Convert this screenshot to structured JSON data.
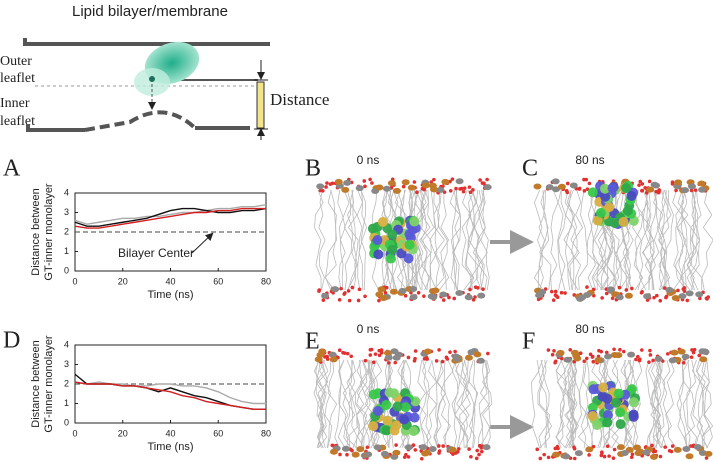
{
  "diagram": {
    "title": "Lipid bilayer/membrane",
    "outer_label": [
      "Outer",
      "leaflet"
    ],
    "inner_label": [
      "Inner",
      "leaflet"
    ],
    "distance_label": "Distance"
  },
  "panels": [
    {
      "letter": "A"
    },
    {
      "letter": "B",
      "time": "0 ns"
    },
    {
      "letter": "C",
      "time": "80 ns"
    },
    {
      "letter": "D"
    },
    {
      "letter": "E",
      "time": "0 ns"
    },
    {
      "letter": "F",
      "time": "80 ns"
    }
  ],
  "chart_data": [
    {
      "type": "line",
      "xlabel": "Time (ns)",
      "ylabel": [
        "Distance between",
        "GT-inner monolayer"
      ],
      "annotation": "Bilayer Center",
      "hline": 2,
      "xlim": [
        0,
        80
      ],
      "ylim": [
        0,
        4
      ],
      "xticks": [
        0,
        20,
        40,
        60,
        80
      ],
      "yticks": [
        0,
        1,
        2,
        3,
        4
      ],
      "x": [
        0,
        5,
        10,
        15,
        20,
        25,
        30,
        35,
        40,
        45,
        50,
        55,
        60,
        65,
        70,
        75,
        80
      ],
      "series": [
        {
          "color": "#aaaaaa",
          "values": [
            2.6,
            2.4,
            2.5,
            2.6,
            2.7,
            2.7,
            2.8,
            2.8,
            2.9,
            3.0,
            3.0,
            3.1,
            3.2,
            3.2,
            3.3,
            3.3,
            3.4
          ]
        },
        {
          "color": "#111111",
          "values": [
            2.5,
            2.3,
            2.3,
            2.4,
            2.5,
            2.6,
            2.7,
            2.9,
            3.1,
            3.2,
            3.2,
            3.1,
            3.0,
            3.0,
            3.1,
            3.1,
            3.2
          ]
        },
        {
          "color": "#d42020",
          "values": [
            2.3,
            2.2,
            2.2,
            2.3,
            2.4,
            2.5,
            2.6,
            2.7,
            2.8,
            2.9,
            3.0,
            3.0,
            3.1,
            3.1,
            3.2,
            3.2,
            3.2
          ]
        }
      ]
    },
    {
      "type": "line",
      "xlabel": "Time (ns)",
      "ylabel": [
        "Distance between",
        "GT-inner monolayer"
      ],
      "hline": 2,
      "xlim": [
        0,
        80
      ],
      "ylim": [
        0,
        4
      ],
      "xticks": [
        0,
        20,
        40,
        60,
        80
      ],
      "yticks": [
        0,
        1,
        2,
        3,
        4
      ],
      "x": [
        0,
        5,
        10,
        15,
        20,
        25,
        30,
        35,
        40,
        45,
        50,
        55,
        60,
        65,
        70,
        75,
        80
      ],
      "series": [
        {
          "color": "#aaaaaa",
          "values": [
            2.1,
            2.0,
            2.1,
            2.0,
            2.0,
            1.9,
            1.9,
            2.0,
            2.0,
            1.9,
            1.9,
            1.8,
            1.6,
            1.3,
            1.1,
            1.0,
            1.0
          ]
        },
        {
          "color": "#111111",
          "values": [
            2.5,
            2.0,
            2.0,
            2.0,
            1.9,
            1.9,
            1.8,
            1.6,
            1.8,
            1.6,
            1.4,
            1.3,
            1.1,
            0.9,
            0.8,
            0.7,
            0.7
          ]
        },
        {
          "color": "#d42020",
          "values": [
            2.1,
            2.0,
            2.0,
            2.0,
            1.9,
            1.9,
            1.8,
            1.7,
            1.6,
            1.4,
            1.3,
            1.1,
            1.0,
            0.9,
            0.8,
            0.7,
            0.7
          ]
        }
      ]
    }
  ]
}
